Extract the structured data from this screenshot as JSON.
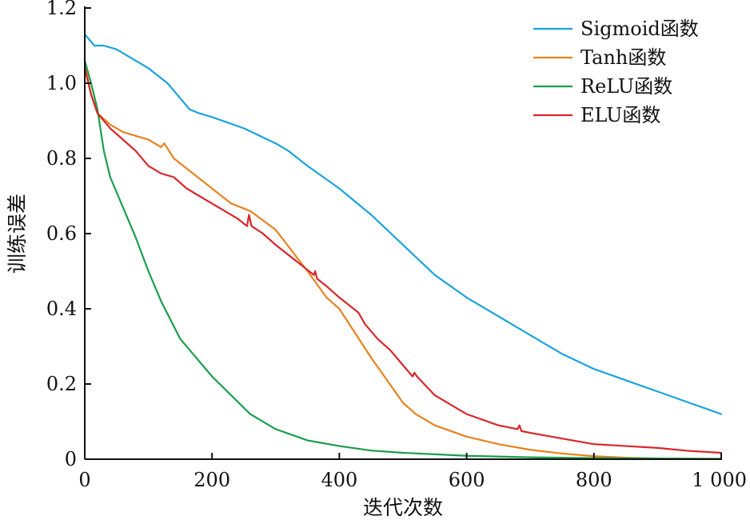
{
  "chart_data": {
    "type": "line",
    "title": "",
    "xlabel": "迭代次数",
    "ylabel": "训练误差",
    "xlim": [
      0,
      1000
    ],
    "ylim": [
      0,
      1.2
    ],
    "xticks": [
      0,
      200,
      400,
      600,
      800,
      1000
    ],
    "xtick_labels": [
      "0",
      "200",
      "400",
      "600",
      "800",
      "1 000"
    ],
    "yticks": [
      0,
      0.2,
      0.4,
      0.6,
      0.8,
      1.0,
      1.2
    ],
    "ytick_labels": [
      "0",
      "0.2",
      "0.4",
      "0.6",
      "0.8",
      "1.0",
      "1.2"
    ],
    "grid": false,
    "legend_position": "top-right",
    "series": [
      {
        "name": "Sigmoid函数",
        "color": "#1aa3dc",
        "points": [
          [
            0,
            1.13
          ],
          [
            5,
            1.12
          ],
          [
            10,
            1.11
          ],
          [
            15,
            1.1
          ],
          [
            20,
            1.1
          ],
          [
            30,
            1.1
          ],
          [
            50,
            1.09
          ],
          [
            80,
            1.06
          ],
          [
            100,
            1.04
          ],
          [
            130,
            1.0
          ],
          [
            150,
            0.96
          ],
          [
            165,
            0.93
          ],
          [
            180,
            0.92
          ],
          [
            200,
            0.91
          ],
          [
            250,
            0.88
          ],
          [
            300,
            0.84
          ],
          [
            320,
            0.82
          ],
          [
            350,
            0.78
          ],
          [
            400,
            0.72
          ],
          [
            450,
            0.65
          ],
          [
            500,
            0.57
          ],
          [
            550,
            0.49
          ],
          [
            600,
            0.43
          ],
          [
            650,
            0.38
          ],
          [
            700,
            0.33
          ],
          [
            750,
            0.28
          ],
          [
            800,
            0.24
          ],
          [
            850,
            0.21
          ],
          [
            900,
            0.18
          ],
          [
            950,
            0.15
          ],
          [
            1000,
            0.12
          ]
        ]
      },
      {
        "name": "Tanh函数",
        "color": "#e8821e",
        "points": [
          [
            0,
            1.05
          ],
          [
            10,
            0.97
          ],
          [
            20,
            0.92
          ],
          [
            40,
            0.89
          ],
          [
            60,
            0.87
          ],
          [
            80,
            0.86
          ],
          [
            100,
            0.85
          ],
          [
            120,
            0.83
          ],
          [
            125,
            0.84
          ],
          [
            140,
            0.8
          ],
          [
            170,
            0.76
          ],
          [
            200,
            0.72
          ],
          [
            230,
            0.68
          ],
          [
            260,
            0.66
          ],
          [
            300,
            0.61
          ],
          [
            350,
            0.5
          ],
          [
            380,
            0.43
          ],
          [
            400,
            0.4
          ],
          [
            450,
            0.27
          ],
          [
            500,
            0.15
          ],
          [
            520,
            0.12
          ],
          [
            550,
            0.09
          ],
          [
            600,
            0.06
          ],
          [
            650,
            0.04
          ],
          [
            700,
            0.025
          ],
          [
            750,
            0.015
          ],
          [
            800,
            0.008
          ],
          [
            850,
            0.004
          ],
          [
            900,
            0.002
          ],
          [
            1000,
            0.001
          ]
        ]
      },
      {
        "name": "ReLU函数",
        "color": "#1a9e4b",
        "points": [
          [
            0,
            1.06
          ],
          [
            10,
            1.0
          ],
          [
            20,
            0.93
          ],
          [
            30,
            0.82
          ],
          [
            40,
            0.75
          ],
          [
            60,
            0.67
          ],
          [
            80,
            0.59
          ],
          [
            100,
            0.5
          ],
          [
            120,
            0.42
          ],
          [
            150,
            0.32
          ],
          [
            180,
            0.26
          ],
          [
            200,
            0.22
          ],
          [
            230,
            0.17
          ],
          [
            260,
            0.12
          ],
          [
            300,
            0.08
          ],
          [
            350,
            0.05
          ],
          [
            400,
            0.035
          ],
          [
            450,
            0.023
          ],
          [
            500,
            0.017
          ],
          [
            600,
            0.009
          ],
          [
            700,
            0.005
          ],
          [
            800,
            0.003
          ],
          [
            900,
            0.002
          ],
          [
            1000,
            0.001
          ]
        ]
      },
      {
        "name": "ELU函数",
        "color": "#d9262a",
        "points": [
          [
            0,
            1.04
          ],
          [
            10,
            0.97
          ],
          [
            20,
            0.92
          ],
          [
            40,
            0.88
          ],
          [
            60,
            0.85
          ],
          [
            80,
            0.82
          ],
          [
            100,
            0.78
          ],
          [
            120,
            0.76
          ],
          [
            140,
            0.75
          ],
          [
            160,
            0.72
          ],
          [
            180,
            0.7
          ],
          [
            200,
            0.68
          ],
          [
            220,
            0.66
          ],
          [
            240,
            0.64
          ],
          [
            255,
            0.62
          ],
          [
            258,
            0.65
          ],
          [
            262,
            0.62
          ],
          [
            280,
            0.6
          ],
          [
            300,
            0.57
          ],
          [
            330,
            0.53
          ],
          [
            360,
            0.49
          ],
          [
            362,
            0.5
          ],
          [
            365,
            0.48
          ],
          [
            380,
            0.46
          ],
          [
            400,
            0.43
          ],
          [
            430,
            0.39
          ],
          [
            440,
            0.36
          ],
          [
            460,
            0.32
          ],
          [
            480,
            0.29
          ],
          [
            500,
            0.25
          ],
          [
            515,
            0.22
          ],
          [
            518,
            0.23
          ],
          [
            522,
            0.22
          ],
          [
            550,
            0.17
          ],
          [
            600,
            0.12
          ],
          [
            650,
            0.09
          ],
          [
            680,
            0.08
          ],
          [
            683,
            0.09
          ],
          [
            686,
            0.075
          ],
          [
            700,
            0.07
          ],
          [
            750,
            0.055
          ],
          [
            800,
            0.04
          ],
          [
            850,
            0.035
          ],
          [
            900,
            0.03
          ],
          [
            950,
            0.022
          ],
          [
            1000,
            0.017
          ]
        ]
      }
    ]
  }
}
